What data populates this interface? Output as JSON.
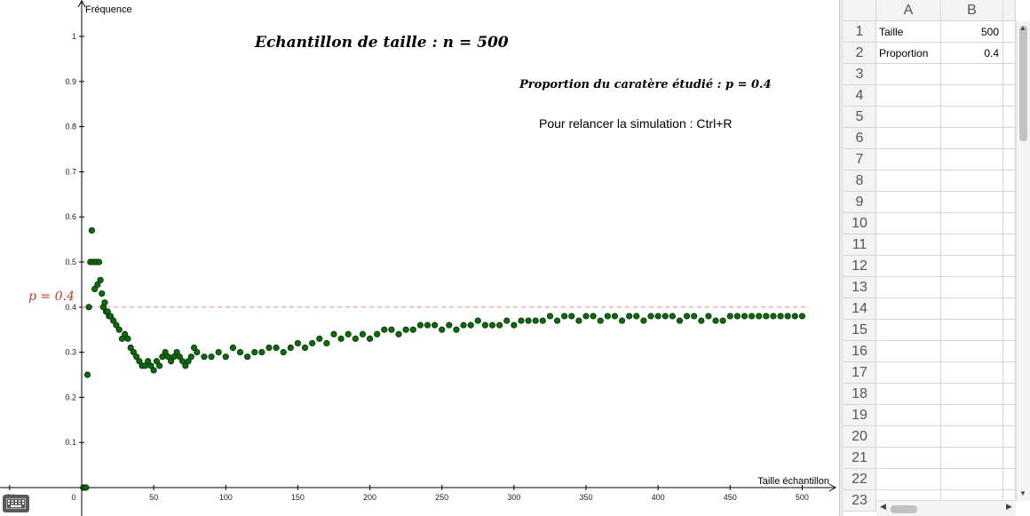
{
  "graph": {
    "title": "Echantillon de taille : n = 500",
    "subtitle": "Proportion du caratère étudié : p = 0.4",
    "hint": "Pour relancer la simulation : Ctrl+R",
    "p_label": "p = 0.4",
    "y_axis_label": "Fréquence",
    "x_axis_label": "Taille échantillon",
    "colors": {
      "points": "#0a6b0a",
      "point_stroke": "#0c2b0c",
      "reference_line": "#e88a8a",
      "p_label": "#c0392b"
    }
  },
  "chart_data": {
    "type": "scatter",
    "xlabel": "Taille échantillon",
    "ylabel": "Fréquence",
    "xlim": [
      -50,
      520
    ],
    "ylim": [
      0,
      1.05
    ],
    "x_ticks": [
      "-50",
      "0",
      "50",
      "100",
      "150",
      "200",
      "250",
      "300",
      "350",
      "400",
      "450",
      "500"
    ],
    "y_ticks": [
      "0.1",
      "0.2",
      "0.3",
      "0.4",
      "0.5",
      "0.6",
      "0.7",
      "0.8",
      "0.9",
      "1"
    ],
    "reference_line": {
      "y": 0.4,
      "label": "p = 0.4",
      "style": "dashed"
    },
    "grid": false,
    "points": [
      [
        1,
        0
      ],
      [
        2,
        0
      ],
      [
        3,
        0
      ],
      [
        4,
        0.25
      ],
      [
        5,
        0.4
      ],
      [
        6,
        0.5
      ],
      [
        7,
        0.57
      ],
      [
        8,
        0.5
      ],
      [
        9,
        0.44
      ],
      [
        10,
        0.5
      ],
      [
        11,
        0.45
      ],
      [
        12,
        0.5
      ],
      [
        13,
        0.46
      ],
      [
        14,
        0.43
      ],
      [
        15,
        0.4
      ],
      [
        16,
        0.41
      ],
      [
        17,
        0.39
      ],
      [
        18,
        0.39
      ],
      [
        19,
        0.38
      ],
      [
        20,
        0.38
      ],
      [
        22,
        0.37
      ],
      [
        24,
        0.36
      ],
      [
        26,
        0.35
      ],
      [
        28,
        0.33
      ],
      [
        30,
        0.34
      ],
      [
        32,
        0.33
      ],
      [
        34,
        0.31
      ],
      [
        36,
        0.3
      ],
      [
        38,
        0.29
      ],
      [
        40,
        0.28
      ],
      [
        42,
        0.27
      ],
      [
        44,
        0.27
      ],
      [
        46,
        0.28
      ],
      [
        48,
        0.27
      ],
      [
        50,
        0.26
      ],
      [
        52,
        0.28
      ],
      [
        54,
        0.27
      ],
      [
        56,
        0.29
      ],
      [
        58,
        0.3
      ],
      [
        60,
        0.29
      ],
      [
        62,
        0.28
      ],
      [
        64,
        0.29
      ],
      [
        66,
        0.3
      ],
      [
        68,
        0.29
      ],
      [
        70,
        0.28
      ],
      [
        72,
        0.27
      ],
      [
        74,
        0.28
      ],
      [
        76,
        0.29
      ],
      [
        78,
        0.31
      ],
      [
        80,
        0.3
      ],
      [
        85,
        0.29
      ],
      [
        90,
        0.29
      ],
      [
        95,
        0.3
      ],
      [
        100,
        0.29
      ],
      [
        105,
        0.31
      ],
      [
        110,
        0.3
      ],
      [
        115,
        0.29
      ],
      [
        120,
        0.3
      ],
      [
        125,
        0.3
      ],
      [
        130,
        0.31
      ],
      [
        135,
        0.31
      ],
      [
        140,
        0.3
      ],
      [
        145,
        0.31
      ],
      [
        150,
        0.32
      ],
      [
        155,
        0.31
      ],
      [
        160,
        0.32
      ],
      [
        165,
        0.33
      ],
      [
        170,
        0.32
      ],
      [
        175,
        0.34
      ],
      [
        180,
        0.33
      ],
      [
        185,
        0.34
      ],
      [
        190,
        0.33
      ],
      [
        195,
        0.34
      ],
      [
        200,
        0.33
      ],
      [
        205,
        0.34
      ],
      [
        210,
        0.35
      ],
      [
        215,
        0.35
      ],
      [
        220,
        0.34
      ],
      [
        225,
        0.35
      ],
      [
        230,
        0.35
      ],
      [
        235,
        0.36
      ],
      [
        240,
        0.36
      ],
      [
        245,
        0.36
      ],
      [
        250,
        0.35
      ],
      [
        255,
        0.36
      ],
      [
        260,
        0.35
      ],
      [
        265,
        0.36
      ],
      [
        270,
        0.36
      ],
      [
        275,
        0.37
      ],
      [
        280,
        0.36
      ],
      [
        285,
        0.36
      ],
      [
        290,
        0.36
      ],
      [
        295,
        0.37
      ],
      [
        300,
        0.36
      ],
      [
        305,
        0.37
      ],
      [
        310,
        0.37
      ],
      [
        315,
        0.37
      ],
      [
        320,
        0.37
      ],
      [
        325,
        0.38
      ],
      [
        330,
        0.37
      ],
      [
        335,
        0.38
      ],
      [
        340,
        0.38
      ],
      [
        345,
        0.37
      ],
      [
        350,
        0.38
      ],
      [
        355,
        0.38
      ],
      [
        360,
        0.37
      ],
      [
        365,
        0.38
      ],
      [
        370,
        0.38
      ],
      [
        375,
        0.37
      ],
      [
        380,
        0.38
      ],
      [
        385,
        0.38
      ],
      [
        390,
        0.37
      ],
      [
        395,
        0.38
      ],
      [
        400,
        0.38
      ],
      [
        405,
        0.38
      ],
      [
        410,
        0.38
      ],
      [
        415,
        0.37
      ],
      [
        420,
        0.38
      ],
      [
        425,
        0.38
      ],
      [
        430,
        0.37
      ],
      [
        435,
        0.38
      ],
      [
        440,
        0.37
      ],
      [
        445,
        0.37
      ],
      [
        450,
        0.38
      ],
      [
        455,
        0.38
      ],
      [
        460,
        0.38
      ],
      [
        465,
        0.38
      ],
      [
        470,
        0.38
      ],
      [
        475,
        0.38
      ],
      [
        480,
        0.38
      ],
      [
        485,
        0.38
      ],
      [
        490,
        0.38
      ],
      [
        495,
        0.38
      ],
      [
        500,
        0.38
      ]
    ]
  },
  "spreadsheet": {
    "columns": [
      "A",
      "B"
    ],
    "row_numbers": [
      "1",
      "2",
      "3",
      "4",
      "5",
      "6",
      "7",
      "8",
      "9",
      "10",
      "11",
      "12",
      "13",
      "14",
      "15",
      "16",
      "17",
      "18",
      "19",
      "20",
      "21",
      "22",
      "23"
    ],
    "cells": [
      {
        "a": "Taille",
        "b": "500"
      },
      {
        "a": "Proportion",
        "b": "0.4"
      }
    ]
  },
  "keyboard": {
    "icon": "keyboard-icon"
  },
  "scrollbars": {
    "up": "▲",
    "down": "▼",
    "left": "◀",
    "right": "▶"
  }
}
